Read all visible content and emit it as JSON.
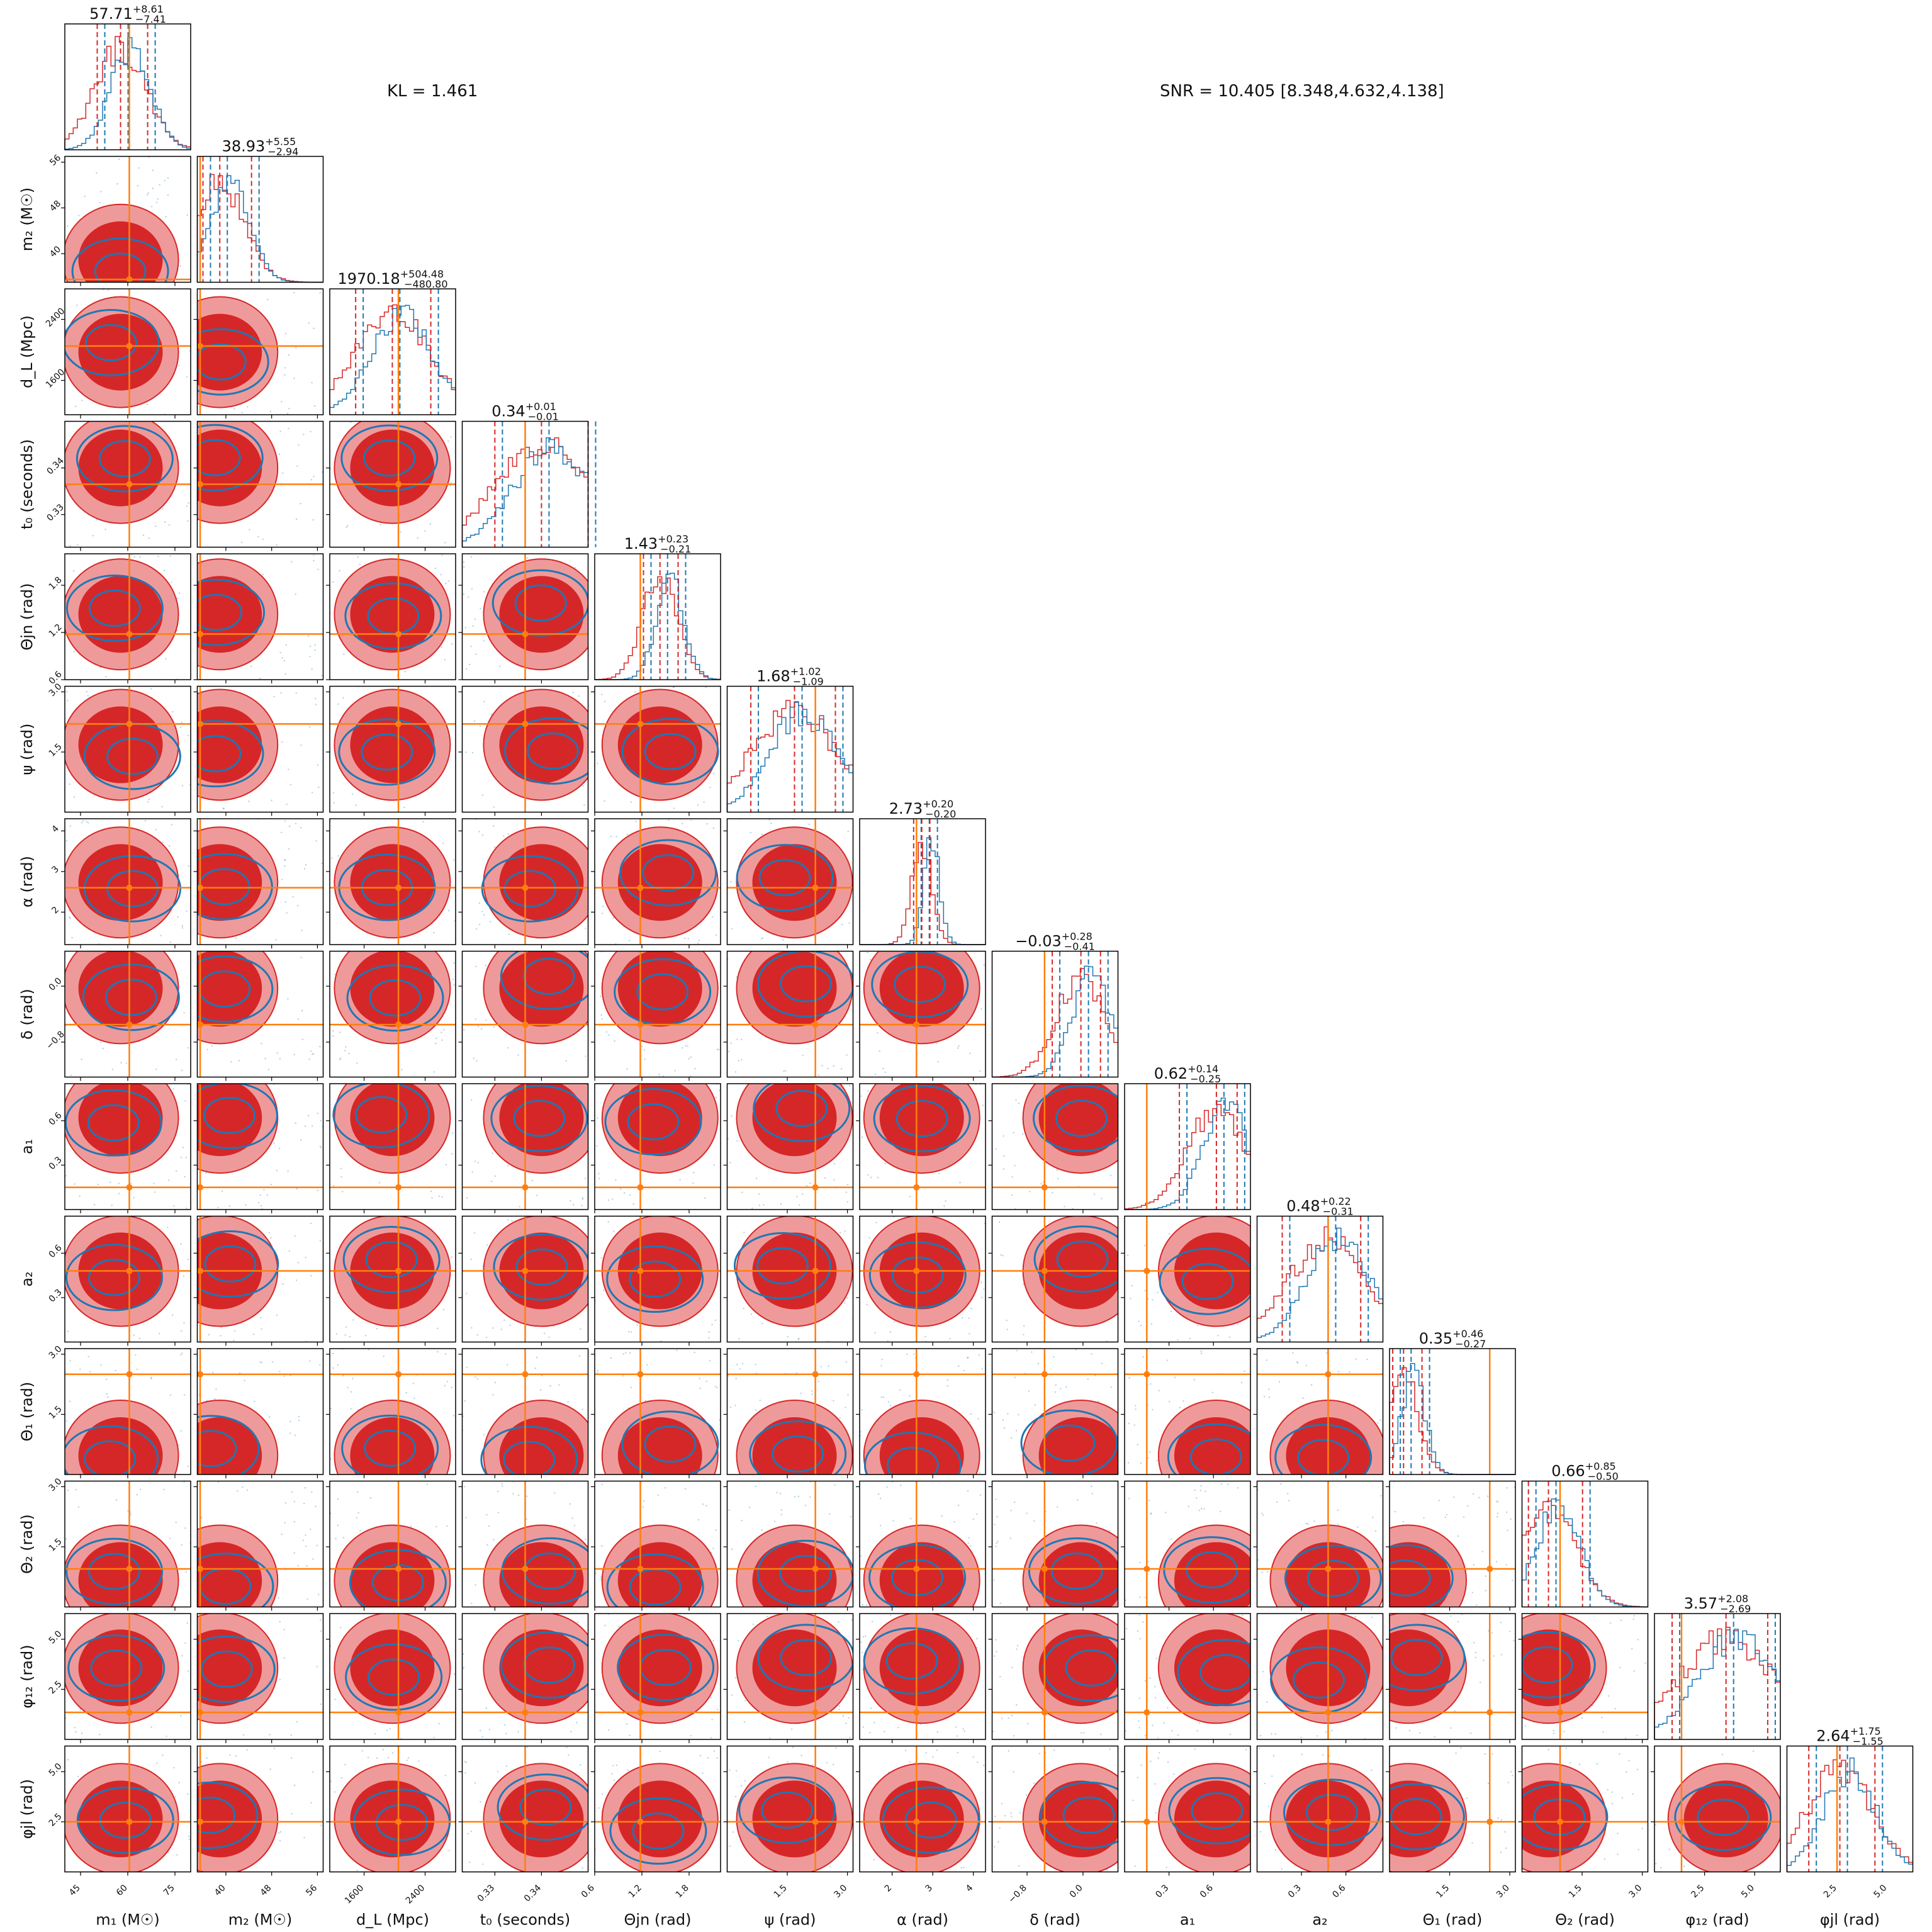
{
  "header": {
    "kl_text": "KL = 1.461",
    "snr_text": "SNR = 10.405 [8.348,4.632,4.138]"
  },
  "colors": {
    "red": "#d62728",
    "red_light": "#ef9a9a",
    "blue": "#1f77b4",
    "orange": "#ff7f0e"
  },
  "chart_data": {
    "type": "corner",
    "parameters": [
      {
        "id": "m1",
        "label": "m₁ (M☉)",
        "median": "57.71",
        "plus": "+8.61",
        "minus": "−7.41",
        "range": [
          40,
          80
        ],
        "ticks": [
          "45",
          "60",
          "75"
        ],
        "tick_values": [
          45,
          60,
          75
        ],
        "truth": 60.5
      },
      {
        "id": "m2",
        "label": "m₂ (M☉)",
        "median": "38.93",
        "plus": "+5.55",
        "minus": "−2.94",
        "range": [
          35,
          57
        ],
        "ticks": [
          "40",
          "48",
          "56"
        ],
        "tick_values": [
          40,
          48,
          56
        ],
        "truth": 35.5
      },
      {
        "id": "dL",
        "label": "d_L (Mpc)",
        "median": "1970.18",
        "plus": "+504.48",
        "minus": "−480.80",
        "range": [
          1150,
          2800
        ],
        "ticks": [
          "1600",
          "2400"
        ],
        "tick_values": [
          1600,
          2400
        ],
        "truth": 2050
      },
      {
        "id": "t0",
        "label": "t₀ (seconds)",
        "median": "0.34",
        "plus": "+0.01",
        "minus": "−0.01",
        "range": [
          0.323,
          0.35
        ],
        "ticks": [
          "0.33",
          "0.34"
        ],
        "tick_values": [
          0.33,
          0.34
        ],
        "truth": 0.3365
      },
      {
        "id": "thjn",
        "label": "Θjn (rad)",
        "median": "1.43",
        "plus": "+0.23",
        "minus": "−0.21",
        "range": [
          0.6,
          2.2
        ],
        "ticks": [
          "0.6",
          "1.2",
          "1.8"
        ],
        "tick_values": [
          0.6,
          1.2,
          1.8
        ],
        "truth": 1.18
      },
      {
        "id": "psi",
        "label": "ψ (rad)",
        "median": "1.68",
        "plus": "+1.02",
        "minus": "−1.09",
        "range": [
          0,
          3.14
        ],
        "ticks": [
          "1.5",
          "3.0"
        ],
        "tick_values": [
          1.5,
          3.0
        ],
        "truth": 2.2
      },
      {
        "id": "alpha",
        "label": "α (rad)",
        "median": "2.73",
        "plus": "+0.20",
        "minus": "−0.20",
        "range": [
          1.2,
          4.3
        ],
        "ticks": [
          "2",
          "3",
          "4"
        ],
        "tick_values": [
          2,
          3,
          4
        ],
        "truth": 2.6
      },
      {
        "id": "delta",
        "label": "δ (rad)",
        "median": "−0.03",
        "plus": "+0.28",
        "minus": "−0.41",
        "range": [
          -1.3,
          0.5
        ],
        "ticks": [
          "−0.8",
          "0.0"
        ],
        "tick_values": [
          -0.8,
          0.0
        ],
        "truth": -0.55
      },
      {
        "id": "a1",
        "label": "a₁",
        "median": "0.62",
        "plus": "+0.14",
        "minus": "−0.25",
        "range": [
          0,
          0.85
        ],
        "ticks": [
          "0.3",
          "0.6"
        ],
        "tick_values": [
          0.3,
          0.6
        ],
        "truth": 0.15
      },
      {
        "id": "a2",
        "label": "a₂",
        "median": "0.48",
        "plus": "+0.22",
        "minus": "−0.31",
        "range": [
          0,
          0.85
        ],
        "ticks": [
          "0.3",
          "0.6"
        ],
        "tick_values": [
          0.3,
          0.6
        ],
        "truth": 0.48
      },
      {
        "id": "th1",
        "label": "Θ₁ (rad)",
        "median": "0.35",
        "plus": "+0.46",
        "minus": "−0.27",
        "range": [
          0,
          3.14
        ],
        "ticks": [
          "1.5",
          "3.0"
        ],
        "tick_values": [
          1.5,
          3.0
        ],
        "truth": 2.5
      },
      {
        "id": "th2",
        "label": "Θ₂ (rad)",
        "median": "0.66",
        "plus": "+0.85",
        "minus": "−0.50",
        "range": [
          0,
          3.14
        ],
        "ticks": [
          "1.5",
          "3.0"
        ],
        "tick_values": [
          1.5,
          3.0
        ],
        "truth": 0.95
      },
      {
        "id": "phi12",
        "label": "φ₁₂ (rad)",
        "median": "3.57",
        "plus": "+2.08",
        "minus": "−2.69",
        "range": [
          0,
          6.28
        ],
        "ticks": [
          "2.5",
          "5.0"
        ],
        "tick_values": [
          2.5,
          5.0
        ],
        "truth": 1.35
      },
      {
        "id": "phijl",
        "label": "φjl (rad)",
        "median": "2.64",
        "plus": "+1.75",
        "minus": "−1.55",
        "range": [
          0,
          6.28
        ],
        "ticks": [
          "2.5",
          "5.0"
        ],
        "tick_values": [
          2.5,
          5.0
        ],
        "truth": 2.5
      }
    ],
    "x_labels": [
      "m₁ (M☉)",
      "m₂ (M☉)",
      "d_L (Mpc)",
      "t₀ (seconds)",
      "Θjn (rad)",
      "ψ (rad)",
      "α (rad)",
      "δ (rad)",
      "a₁",
      "a₂",
      "Θ₁ (rad)",
      "Θ₂ (rad)",
      "φ₁₂ (rad)",
      "φjl (rad)"
    ],
    "y_labels": [
      "m₂ (M☉)",
      "d_L (Mpc)",
      "t₀ (seconds)",
      "Θjn (rad)",
      "ψ (rad)",
      "α (rad)",
      "δ (rad)",
      "a₁",
      "a₂",
      "Θ₁ (rad)",
      "Θ₂ (rad)",
      "φ₁₂ (rad)",
      "φjl (rad)"
    ]
  }
}
